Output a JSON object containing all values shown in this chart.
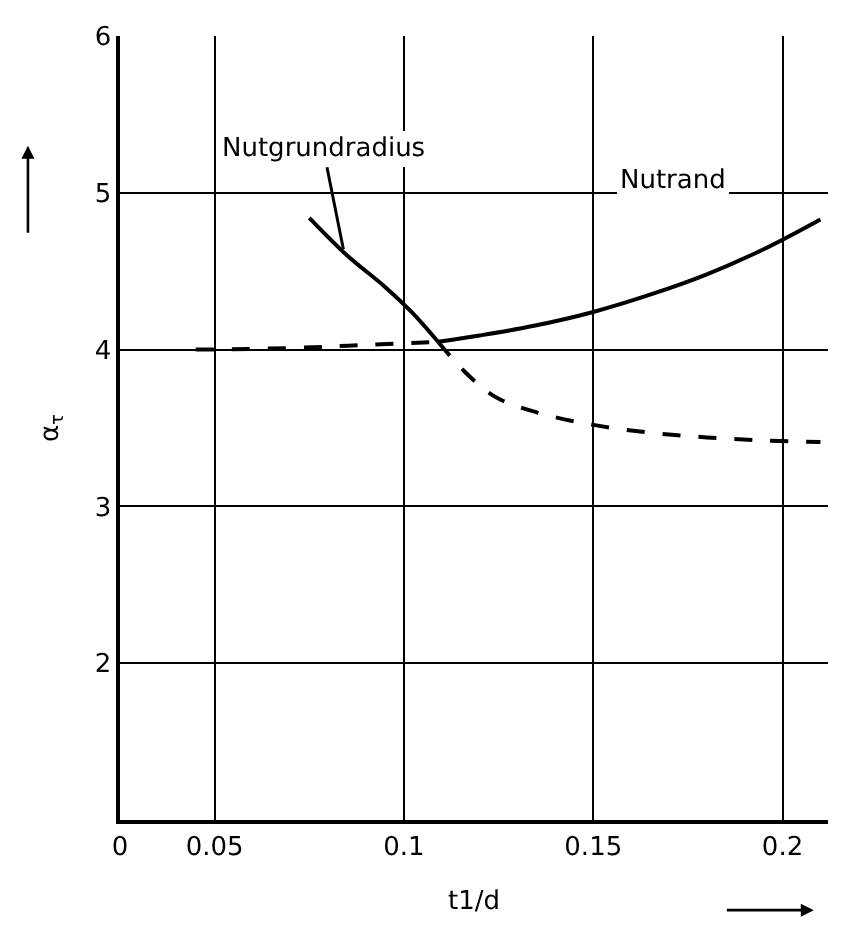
{
  "chart_data": {
    "type": "line",
    "xlabel": "t1/d",
    "ylabel": "α$_{τ}$",
    "xlim": [
      0.025,
      0.212
    ],
    "ylim": [
      1,
      6
    ],
    "xticks": [
      {
        "value": 0.025,
        "label": "0"
      },
      0.05,
      0.1,
      0.15,
      0.2
    ],
    "yticks": [
      2,
      3,
      4,
      5,
      6
    ],
    "grid": true,
    "marker": "none",
    "series": [
      {
        "color": "#000000",
        "line_style": "solid",
        "x": [
          0.075,
          0.085,
          0.095,
          0.102,
          0.109
        ],
        "values": [
          4.84,
          4.6,
          4.4,
          4.24,
          4.05
        ]
      },
      {
        "color": "#000000",
        "line_style": "dashed",
        "x": [
          0.109,
          0.116,
          0.124,
          0.135,
          0.15,
          0.165,
          0.18,
          0.195,
          0.21
        ],
        "values": [
          4.05,
          3.86,
          3.7,
          3.6,
          3.52,
          3.47,
          3.44,
          3.42,
          3.41
        ]
      },
      {
        "color": "#000000",
        "line_style": "dashed",
        "x": [
          0.045,
          0.07,
          0.09,
          0.109
        ],
        "values": [
          4.0,
          4.01,
          4.03,
          4.05
        ]
      },
      {
        "color": "#000000",
        "line_style": "solid",
        "x": [
          0.109,
          0.12,
          0.134,
          0.15,
          0.165,
          0.18,
          0.195,
          0.21
        ],
        "values": [
          4.05,
          4.09,
          4.15,
          4.24,
          4.35,
          4.48,
          4.64,
          4.83
        ]
      }
    ],
    "annotations": [
      {
        "text": "Nutgrundradius",
        "x": 0.084,
        "y": 4.64
      },
      "Nutrand"
    ]
  }
}
